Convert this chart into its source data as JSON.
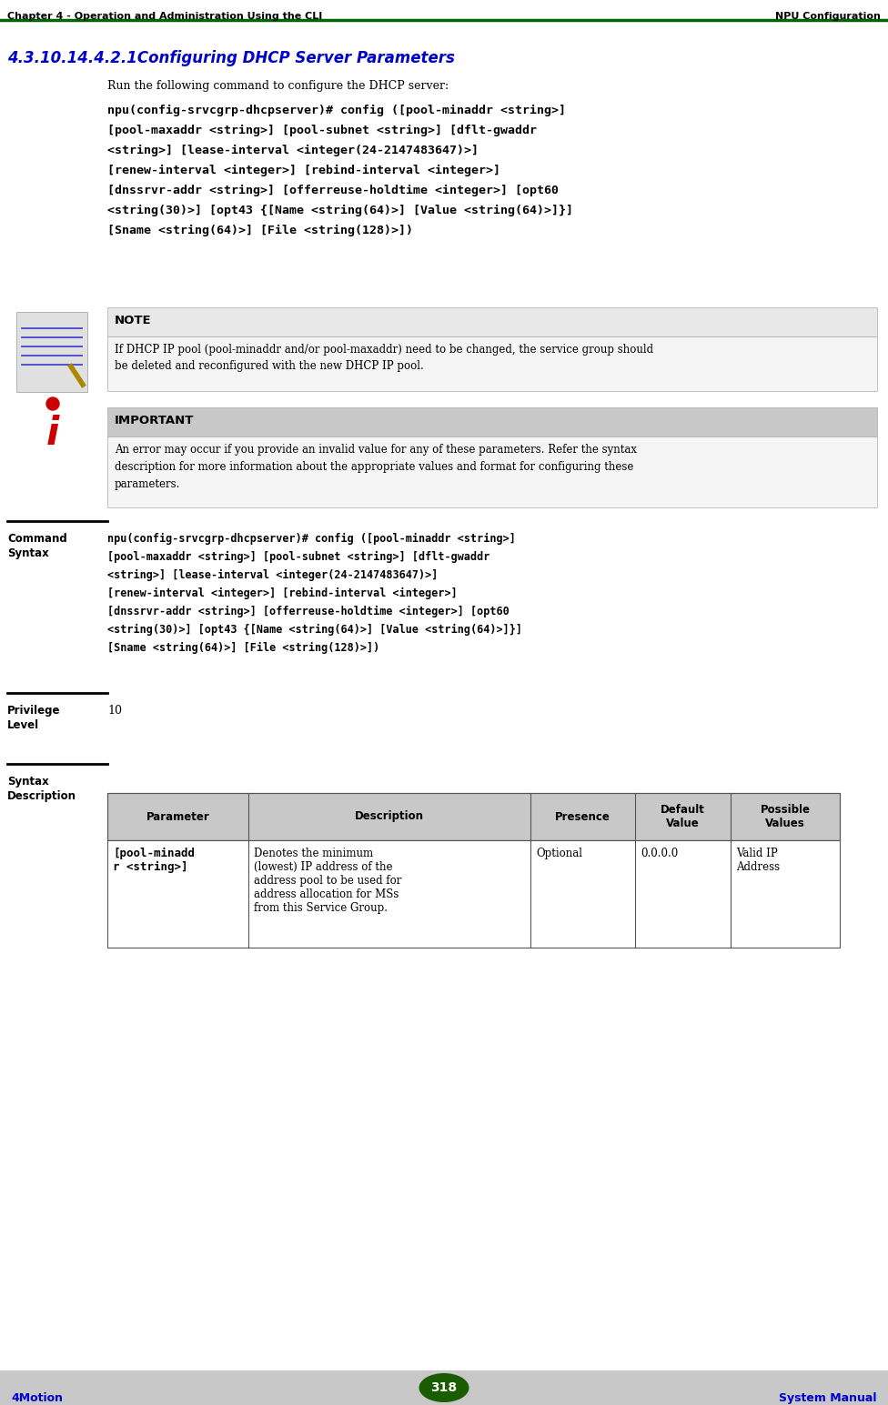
{
  "header_left": "Chapter 4 - Operation and Administration Using the CLI",
  "header_right": "NPU Configuration",
  "header_line_color": "#006400",
  "section_title": "4.3.10.14.4.2.1Configuring DHCP Server Parameters",
  "section_title_color": "#0000CD",
  "intro_text": "Run the following command to configure the DHCP server:",
  "command_text_lines": [
    "npu(config-srvcgrp-dhcpserver)# config ([pool-minaddr <string>]",
    "[pool-maxaddr <string>] [pool-subnet <string>] [dflt-gwaddr",
    "<string>] [lease-interval <integer(24-2147483647)>]",
    "[renew-interval <integer>] [rebind-interval <integer>]",
    "[dnssrvr-addr <string>] [offerreuse-holdtime <integer>] [opt60",
    "<string(30)>] [opt43 {[Name <string(64)>] [Value <string(64)>]}]",
    "[Sname <string(64)>] [File <string(128)>])"
  ],
  "note_title": "NOTE",
  "note_bg": "#E8E8E8",
  "note_text_lines": [
    "If DHCP IP pool (pool-minaddr and/or pool-maxaddr) need to be changed, the service group should",
    "be deleted and reconfigured with the new DHCP IP pool."
  ],
  "important_title": "IMPORTANT",
  "important_bg": "#C8C8C8",
  "important_text_lines": [
    "An error may occur if you provide an invalid value for any of these parameters. Refer the syntax",
    "description for more information about the appropriate values and format for configuring these",
    "parameters."
  ],
  "cmd_syntax_label1": "Command",
  "cmd_syntax_label2": "Syntax",
  "cmd_syntax_lines": [
    "npu(config-srvcgrp-dhcpserver)# config ([pool-minaddr <string>]",
    "[pool-maxaddr <string>] [pool-subnet <string>] [dflt-gwaddr",
    "<string>] [lease-interval <integer(24-2147483647)>]",
    "[renew-interval <integer>] [rebind-interval <integer>]",
    "[dnssrvr-addr <string>] [offerreuse-holdtime <integer>] [opt60",
    "<string(30)>] [opt43 {[Name <string(64)>] [Value <string(64)>]}]",
    "[Sname <string(64)>] [File <string(128)>])"
  ],
  "privilege_label1": "Privilege",
  "privilege_label2": "Level",
  "privilege_value": "10",
  "syntax_desc_label1": "Syntax",
  "syntax_desc_label2": "Description",
  "table_col_headers": [
    "Parameter",
    "Description",
    "Presence",
    "Default\nValue",
    "Possible\nValues"
  ],
  "table_col_widths": [
    155,
    310,
    115,
    105,
    120
  ],
  "table_header_bg": "#C8C8C8",
  "table_row_data": [
    "[pool-minadd\nr <string>]",
    "Denotes the minimum\n(lowest) IP address of the\naddress pool to be used for\naddress allocation for MSs\nfrom this Service Group.",
    "Optional",
    "0.0.0.0",
    "Valid IP\nAddress"
  ],
  "footer_bg": "#C8C8C8",
  "footer_left": "4Motion",
  "footer_center": "318",
  "footer_right": "System Manual",
  "footer_text_color": "#0000CD",
  "footer_badge_color": "#1A5C00",
  "bg_color": "#FFFFFF",
  "separator_color": "#000000",
  "label_fontsize": 8.5,
  "body_fontsize": 8.5,
  "mono_fontsize": 8.5,
  "cmd_mono_fontsize": 9.5
}
